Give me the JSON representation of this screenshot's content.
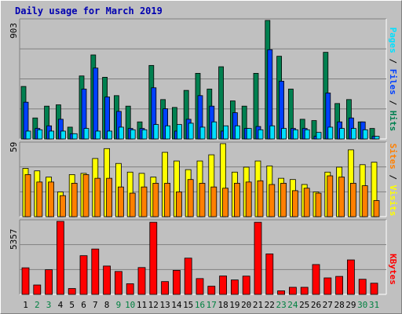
{
  "title": "Daily usage for March 2019",
  "colors": {
    "hits": "#008050",
    "files": "#0040ff",
    "pages": "#00e0ff",
    "visits": "#ffff00",
    "sites": "#ff8000",
    "kbytes": "#ff0000",
    "weekend_day": "#008040",
    "weekday": "#000000",
    "panel_bg": "#c0c0c0",
    "grid": "#808080"
  },
  "legend": {
    "top": {
      "pages": "Pages",
      "files": "Files",
      "hits": "Hits",
      "sep": "/"
    },
    "mid": {
      "sites": "Sites",
      "visits": "Visits",
      "sep": "/"
    },
    "bot": {
      "kbytes": "KBytes"
    }
  },
  "ymax": {
    "top": "903",
    "mid": "59",
    "bot": "5357"
  },
  "chart_data": [
    {
      "type": "bar",
      "title": "Daily usage for March 2019",
      "categories": [
        "1",
        "2",
        "3",
        "4",
        "5",
        "6",
        "7",
        "8",
        "9",
        "10",
        "11",
        "12",
        "13",
        "14",
        "15",
        "16",
        "17",
        "18",
        "19",
        "20",
        "21",
        "22",
        "23",
        "24",
        "25",
        "26",
        "27",
        "28",
        "29",
        "30",
        "31"
      ],
      "weekend_days": [
        "2",
        "3",
        "9",
        "10",
        "16",
        "17",
        "23",
        "24",
        "30",
        "31"
      ],
      "ylim": [
        0,
        903
      ],
      "series": [
        {
          "name": "Hits",
          "values": [
            400,
            160,
            250,
            260,
            90,
            480,
            640,
            470,
            330,
            250,
            130,
            560,
            300,
            240,
            370,
            500,
            380,
            550,
            290,
            250,
            500,
            903,
            630,
            380,
            150,
            140,
            660,
            270,
            300,
            130,
            80
          ]
        },
        {
          "name": "Files",
          "values": [
            280,
            80,
            100,
            150,
            40,
            380,
            540,
            320,
            210,
            80,
            80,
            390,
            230,
            60,
            150,
            330,
            250,
            60,
            200,
            80,
            95,
            680,
            440,
            80,
            80,
            20,
            350,
            130,
            160,
            130,
            20
          ]
        },
        {
          "name": "Pages",
          "values": [
            60,
            70,
            60,
            60,
            40,
            80,
            60,
            60,
            90,
            70,
            70,
            110,
            100,
            110,
            120,
            90,
            130,
            100,
            100,
            80,
            70,
            100,
            80,
            70,
            70,
            50,
            90,
            80,
            80,
            70,
            20
          ]
        }
      ]
    },
    {
      "type": "bar",
      "categories": [
        "1",
        "2",
        "3",
        "4",
        "5",
        "6",
        "7",
        "8",
        "9",
        "10",
        "11",
        "12",
        "13",
        "14",
        "15",
        "16",
        "17",
        "18",
        "19",
        "20",
        "21",
        "22",
        "23",
        "24",
        "25",
        "26",
        "27",
        "28",
        "29",
        "30",
        "31"
      ],
      "ylim": [
        0,
        59
      ],
      "series": [
        {
          "name": "Visits",
          "values": [
            39,
            37,
            32,
            20,
            34,
            35,
            47,
            55,
            43,
            36,
            35,
            32,
            52,
            45,
            38,
            45,
            50,
            59,
            36,
            40,
            45,
            41,
            31,
            30,
            26,
            20,
            36,
            40,
            54,
            42,
            44
          ]
        },
        {
          "name": "Sites",
          "values": [
            34,
            28,
            28,
            17,
            27,
            34,
            31,
            31,
            24,
            19,
            24,
            27,
            27,
            20,
            30,
            27,
            24,
            23,
            27,
            28,
            29,
            26,
            27,
            21,
            23,
            19,
            33,
            32,
            27,
            25,
            13
          ]
        }
      ]
    },
    {
      "type": "bar",
      "categories": [
        "1",
        "2",
        "3",
        "4",
        "5",
        "6",
        "7",
        "8",
        "9",
        "10",
        "11",
        "12",
        "13",
        "14",
        "15",
        "16",
        "17",
        "18",
        "19",
        "20",
        "21",
        "22",
        "23",
        "24",
        "25",
        "26",
        "27",
        "28",
        "29",
        "30",
        "31"
      ],
      "ylim": [
        0,
        5357
      ],
      "series": [
        {
          "name": "KBytes",
          "values": [
            1950,
            690,
            1810,
            5357,
            430,
            2840,
            3330,
            2080,
            1680,
            780,
            1970,
            5290,
            940,
            1760,
            2660,
            1160,
            600,
            1350,
            1060,
            1340,
            5290,
            2970,
            260,
            520,
            520,
            2190,
            1210,
            1320,
            2530,
            1110,
            820
          ]
        }
      ]
    }
  ]
}
